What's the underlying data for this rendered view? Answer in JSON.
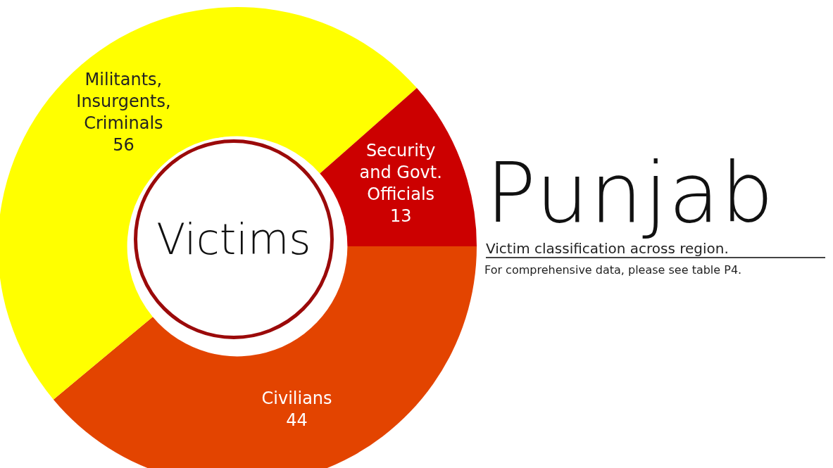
{
  "chart_data": {
    "type": "donut",
    "title": "Punjab",
    "subtitle": "Victim classification across region.",
    "categories": [
      "Civilians",
      "Militants,\nInsurgents,\nCriminals",
      "Security\nand Govt.\nOfficials"
    ],
    "values": [
      44,
      56,
      13
    ],
    "colors": [
      "#e34400",
      "#ffff00",
      "#cc0000"
    ],
    "data_labels": true,
    "legend": false,
    "annotations": [
      "Victims",
      "For comprehensive data, please see table P4."
    ]
  }
}
